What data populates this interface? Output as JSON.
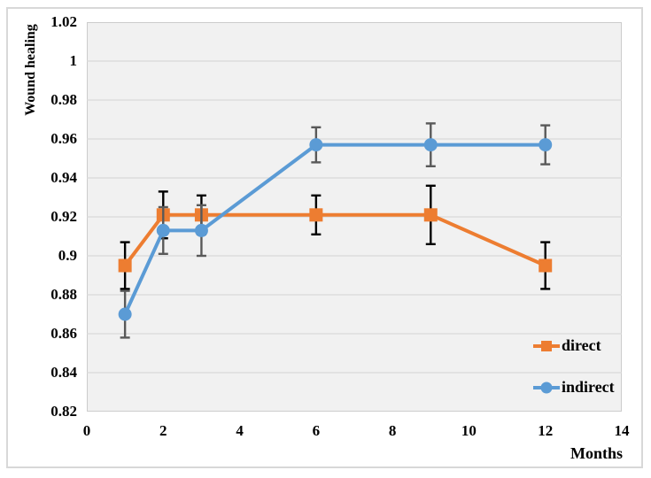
{
  "figure": {
    "background": "#ffffff",
    "border_color": "#d8d8d8"
  },
  "plot": {
    "background": "#f1f1f1",
    "gridline_color": "#d9d9d9",
    "border_color": "#cccccc"
  },
  "chart_data": {
    "type": "line",
    "title": "",
    "xlabel": "Months",
    "ylabel": "Wound healing",
    "xlim": [
      0,
      14
    ],
    "ylim": [
      0.82,
      1.02
    ],
    "x_tick_labels": [
      "0",
      "2",
      "4",
      "6",
      "8",
      "10",
      "12",
      "14"
    ],
    "y_tick_labels": [
      "1.02",
      "1",
      "0.98",
      "0.96",
      "0.94",
      "0.92",
      "0.9",
      "0.88",
      "0.86",
      "0.84",
      "0.82"
    ],
    "grid": "horizontal",
    "legend_position": "inside bottom-right",
    "x": [
      1,
      2,
      3,
      6,
      9,
      12
    ],
    "series": [
      {
        "name": "direct",
        "color": "#ED7D31",
        "marker": "square",
        "error_bar_color": "#000000",
        "values": [
          0.895,
          0.921,
          0.921,
          0.921,
          0.921,
          0.895
        ],
        "errors": [
          0.012,
          0.012,
          0.01,
          0.01,
          0.015,
          0.012
        ]
      },
      {
        "name": "indirect",
        "color": "#5B9BD5",
        "marker": "circle",
        "error_bar_color": "#595959",
        "values": [
          0.87,
          0.913,
          0.913,
          0.957,
          0.957,
          0.957
        ],
        "errors": [
          0.012,
          0.012,
          0.013,
          0.009,
          0.011,
          0.01
        ]
      }
    ]
  }
}
